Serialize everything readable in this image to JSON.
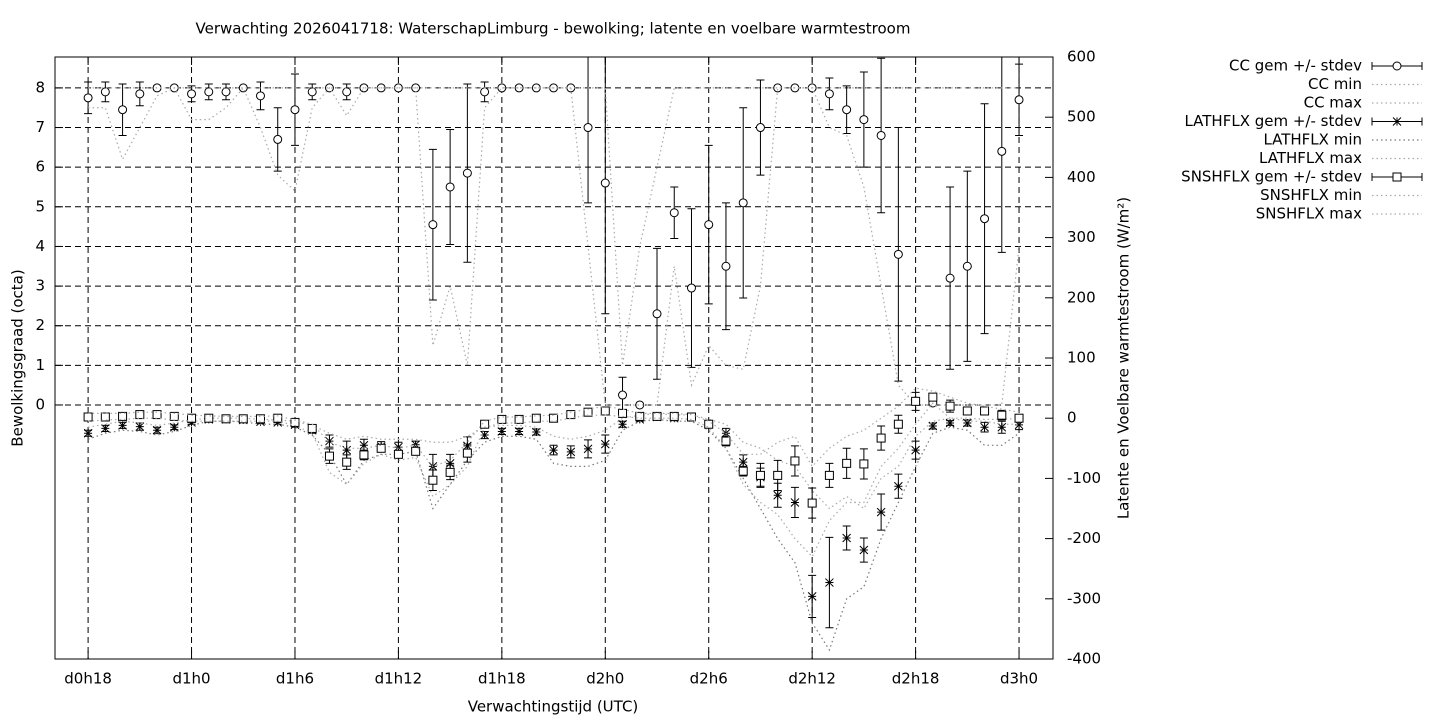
{
  "chart_data": {
    "type": "errorbar",
    "title": "Verwachting 2026041718: WaterschapLimburg - bewolking; latente en voelbare warmtestroom",
    "xlabel": "Verwachtingstijd (UTC)",
    "ylabel": "Bewolkingsgraad (octa)",
    "y2label": "Latente en Voelbare warmtestroom (W/m²)",
    "x": [
      18,
      19,
      20,
      21,
      22,
      23,
      24,
      25,
      26,
      27,
      28,
      29,
      30,
      31,
      32,
      33,
      34,
      35,
      36,
      37,
      38,
      39,
      40,
      41,
      42,
      43,
      44,
      45,
      46,
      47,
      48,
      49,
      50,
      51,
      52,
      53,
      54,
      55,
      56,
      57,
      58,
      59,
      60,
      61,
      62,
      63,
      64,
      65,
      66,
      67,
      68,
      69,
      70,
      71,
      72
    ],
    "xlim": [
      16.08,
      73.97
    ],
    "xticks": [
      {
        "value": 18,
        "label": "d0h18"
      },
      {
        "value": 24,
        "label": "d1h0"
      },
      {
        "value": 30,
        "label": "d1h6"
      },
      {
        "value": 36,
        "label": "d1h12"
      },
      {
        "value": 42,
        "label": "d1h18"
      },
      {
        "value": 48,
        "label": "d2h0"
      },
      {
        "value": 54,
        "label": "d2h6"
      },
      {
        "value": 60,
        "label": "d2h12"
      },
      {
        "value": 66,
        "label": "d2h18"
      },
      {
        "value": 72,
        "label": "d3h0"
      }
    ],
    "ylim": [
      -6.41,
      8.78
    ],
    "yticks": [
      0,
      1,
      2,
      3,
      4,
      5,
      6,
      7,
      8
    ],
    "y2lim": [
      -400,
      600
    ],
    "y2ticks": [
      -400,
      -300,
      -200,
      -100,
      0,
      100,
      200,
      300,
      400,
      500,
      600
    ],
    "grid": true,
    "legend": "outside-right",
    "series": [
      {
        "name": "CC gem +/- stdev",
        "color": "#000000",
        "marker": "circle",
        "values": [
          7.75,
          7.9,
          7.45,
          7.85,
          8.0,
          8.0,
          7.85,
          7.9,
          7.9,
          8.0,
          7.8,
          6.7,
          7.45,
          7.9,
          8.0,
          7.9,
          8.0,
          8.0,
          8.0,
          8.0,
          4.55,
          5.5,
          5.85,
          7.9,
          8.0,
          8.0,
          8.0,
          8.0,
          8.0,
          7.0,
          5.6,
          0.25,
          0.0,
          2.3,
          4.85,
          2.95,
          4.55,
          3.5,
          5.1,
          7.0,
          8.0,
          8.0,
          8.0,
          7.85,
          7.45,
          7.2,
          6.8,
          3.8,
          0.1,
          0.05,
          3.2,
          3.5,
          4.7,
          6.4,
          7.7
        ],
        "errors": [
          0.4,
          0.25,
          0.65,
          0.3,
          0.05,
          0,
          0.2,
          0.2,
          0.2,
          0,
          0.35,
          0.8,
          0.9,
          0.2,
          0,
          0.2,
          0.05,
          0,
          0,
          0,
          1.9,
          1.45,
          2.25,
          0.25,
          0,
          0.05,
          0,
          0,
          0,
          1.9,
          3.3,
          0.45,
          0,
          1.65,
          0.65,
          2.0,
          2.0,
          1.6,
          2.4,
          1.2,
          0,
          0,
          0,
          0.4,
          0.6,
          1.2,
          1.95,
          3.2,
          0,
          0,
          2.3,
          2.4,
          2.9,
          2.55,
          0.9
        ]
      },
      {
        "name": "CC min",
        "color": "#aaaaaa",
        "style": "dotted",
        "values": [
          7.5,
          7.5,
          6.2,
          7.0,
          7.8,
          8,
          7.2,
          7.2,
          7.5,
          8,
          7.0,
          5.8,
          5.4,
          7.5,
          8,
          7.3,
          8,
          8,
          8,
          8,
          1.5,
          3.0,
          1.0,
          7.5,
          8,
          8,
          8,
          8,
          8,
          4.0,
          0,
          0,
          0,
          0,
          3.5,
          0.5,
          1.5,
          1.0,
          0.9,
          3.0,
          8,
          8,
          8,
          7.0,
          6.8,
          5.5,
          3.0,
          0.5,
          0,
          0,
          0,
          0,
          0,
          0,
          4.0
        ]
      },
      {
        "name": "CC max",
        "color": "#aaaaaa",
        "style": "dotted",
        "values": [
          8,
          8,
          8,
          8,
          8,
          8,
          8,
          8,
          8,
          8,
          8,
          8,
          8,
          8,
          8,
          8,
          8,
          8,
          8,
          8,
          8,
          8,
          8,
          8,
          8,
          8,
          8,
          8,
          8,
          8,
          8,
          1,
          4,
          6,
          8,
          8,
          8,
          8,
          8,
          8,
          8,
          8,
          8,
          8,
          8,
          8,
          8,
          8,
          8,
          8,
          8,
          8,
          8,
          8,
          8
        ]
      },
      {
        "name": "LATHFLX gem +/- stdev",
        "color": "#000000",
        "marker": "star",
        "axis": "y2",
        "values": [
          -25,
          -17,
          -12,
          -14,
          -20,
          -15,
          -7,
          -2,
          -2,
          -3,
          -6,
          -7,
          -11,
          -20,
          -38,
          -53,
          -45,
          -47,
          -48,
          -44,
          -80,
          -75,
          -46,
          -28,
          -22,
          -22,
          -23,
          -53,
          -56,
          -51,
          -43,
          -10,
          -2,
          2,
          0,
          2,
          -10,
          -25,
          -73,
          -98,
          -128,
          -140,
          -296,
          -273,
          -199,
          -219,
          -156,
          -113,
          -53,
          -13,
          -8,
          -8,
          -15,
          -15,
          -11
        ],
        "errors": [
          5,
          5,
          5,
          6,
          5,
          4,
          3,
          2,
          2,
          2,
          3,
          3,
          4,
          5,
          10,
          15,
          10,
          8,
          8,
          6,
          20,
          15,
          15,
          6,
          5,
          5,
          5,
          8,
          10,
          15,
          15,
          5,
          3,
          2,
          2,
          2,
          4,
          8,
          12,
          15,
          20,
          25,
          35,
          75,
          20,
          20,
          30,
          20,
          15,
          5,
          4,
          5,
          8,
          10,
          8
        ]
      },
      {
        "name": "LATHFLX min",
        "color": "#777777",
        "style": "dotted",
        "axis": "y2",
        "values": [
          -35,
          -25,
          -20,
          -22,
          -28,
          -22,
          -12,
          -5,
          -5,
          -6,
          -10,
          -10,
          -15,
          -28,
          -60,
          -110,
          -70,
          -60,
          -60,
          -55,
          -150,
          -110,
          -70,
          -40,
          -30,
          -30,
          -35,
          -75,
          -80,
          -80,
          -70,
          -20,
          -5,
          -2,
          -5,
          -5,
          -20,
          -50,
          -100,
          -150,
          -200,
          -240,
          -340,
          -385,
          -300,
          -280,
          -200,
          -140,
          -80,
          -25,
          -15,
          -20,
          -45,
          -45,
          -25
        ]
      },
      {
        "name": "LATHFLX max",
        "color": "#aaaaaa",
        "style": "dotted",
        "axis": "y2",
        "values": [
          -15,
          -10,
          -5,
          -8,
          -12,
          -8,
          -3,
          0,
          0,
          0,
          -2,
          -3,
          -5,
          -12,
          -25,
          -35,
          -30,
          -35,
          -35,
          -35,
          -40,
          -40,
          -30,
          -15,
          -12,
          -12,
          -15,
          -30,
          -35,
          -30,
          -20,
          0,
          5,
          8,
          5,
          6,
          -2,
          -10,
          -40,
          -50,
          -70,
          -80,
          -120,
          -150,
          -130,
          -150,
          -100,
          -80,
          -30,
          -5,
          0,
          0,
          -2,
          -2,
          0
        ]
      },
      {
        "name": "SNSHFLX gem +/- stdev",
        "color": "#000000",
        "marker": "square",
        "axis": "y2",
        "values": [
          2,
          2,
          3,
          6,
          6,
          3,
          0,
          0,
          -1,
          -1,
          -1,
          0,
          -7,
          -17,
          -63,
          -73,
          -61,
          -50,
          -60,
          -55,
          -103,
          -90,
          -58,
          -10,
          -2,
          -2,
          0,
          0,
          6,
          10,
          12,
          8,
          3,
          3,
          3,
          2,
          -10,
          -38,
          -88,
          -95,
          -95,
          -71,
          -141,
          -95,
          -75,
          -76,
          -33,
          -10,
          28,
          35,
          20,
          12,
          12,
          5,
          0
        ],
        "errors": [
          5,
          3,
          3,
          3,
          3,
          3,
          3,
          3,
          3,
          3,
          3,
          3,
          4,
          5,
          12,
          12,
          8,
          5,
          6,
          5,
          17,
          12,
          15,
          5,
          3,
          3,
          5,
          5,
          5,
          5,
          6,
          6,
          3,
          3,
          3,
          3,
          4,
          8,
          8,
          20,
          25,
          25,
          25,
          20,
          25,
          25,
          20,
          15,
          15,
          5,
          10,
          5,
          5,
          8,
          6
        ]
      },
      {
        "name": "SNSHFLX min",
        "color": "#aaaaaa",
        "style": "dotted",
        "axis": "y2",
        "values": [
          -5,
          -3,
          -2,
          0,
          0,
          -3,
          -5,
          -5,
          -5,
          -5,
          -5,
          -5,
          -12,
          -25,
          -90,
          -110,
          -75,
          -60,
          -70,
          -65,
          -130,
          -110,
          -80,
          -15,
          -8,
          -8,
          -5,
          -5,
          0,
          5,
          5,
          3,
          0,
          0,
          0,
          -2,
          -15,
          -50,
          -110,
          -140,
          -160,
          -200,
          -230,
          -170,
          -140,
          -140,
          -80,
          -50,
          -10,
          25,
          0,
          -5,
          -5,
          -10,
          -10
        ]
      },
      {
        "name": "SNSHFLX max",
        "color": "#aaaaaa",
        "style": "dotted",
        "axis": "y2",
        "values": [
          8,
          8,
          8,
          10,
          10,
          8,
          5,
          4,
          3,
          3,
          3,
          4,
          -3,
          -10,
          -40,
          -50,
          -50,
          -45,
          -50,
          -45,
          -80,
          -70,
          -40,
          -5,
          2,
          2,
          4,
          5,
          10,
          15,
          20,
          15,
          8,
          8,
          8,
          6,
          -5,
          -25,
          -60,
          -60,
          -40,
          -30,
          -80,
          -50,
          -30,
          -20,
          0,
          20,
          50,
          45,
          35,
          25,
          20,
          15,
          10
        ]
      }
    ]
  }
}
